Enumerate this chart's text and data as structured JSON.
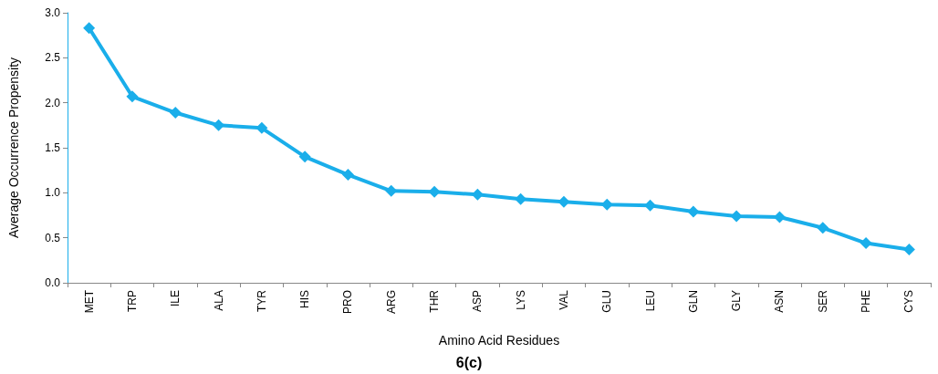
{
  "chart_data": {
    "type": "line",
    "title": "6(c)",
    "xlabel": "Amino Acid Residues",
    "ylabel": "Average Occurrence Propensity",
    "categories": [
      "MET",
      "TRP",
      "ILE",
      "ALA",
      "TYR",
      "HIS",
      "PRO",
      "ARG",
      "THR",
      "ASP",
      "LYS",
      "VAL",
      "GLU",
      "LEU",
      "GLN",
      "GLY",
      "ASN",
      "SER",
      "PHE",
      "CYS"
    ],
    "series": [
      {
        "color": "#1aaeea",
        "values": [
          2.83,
          2.07,
          1.89,
          1.75,
          1.72,
          1.4,
          1.2,
          1.02,
          1.01,
          0.98,
          0.93,
          0.9,
          0.87,
          0.86,
          0.79,
          0.74,
          0.73,
          0.61,
          0.44,
          0.37
        ]
      }
    ],
    "ylim": [
      0,
      3
    ],
    "yticks": [
      {
        "value": 0,
        "label": "0.0"
      },
      {
        "value": 0.5,
        "label": "0.5"
      },
      {
        "value": 1,
        "label": "1.0"
      },
      {
        "value": 1.5,
        "label": "1.5"
      },
      {
        "value": 2,
        "label": "2.0"
      },
      {
        "value": 2.5,
        "label": "2.5"
      },
      {
        "value": 3,
        "label": "3.0"
      }
    ],
    "grid": false,
    "marker": "diamond",
    "line_style": "solid"
  }
}
